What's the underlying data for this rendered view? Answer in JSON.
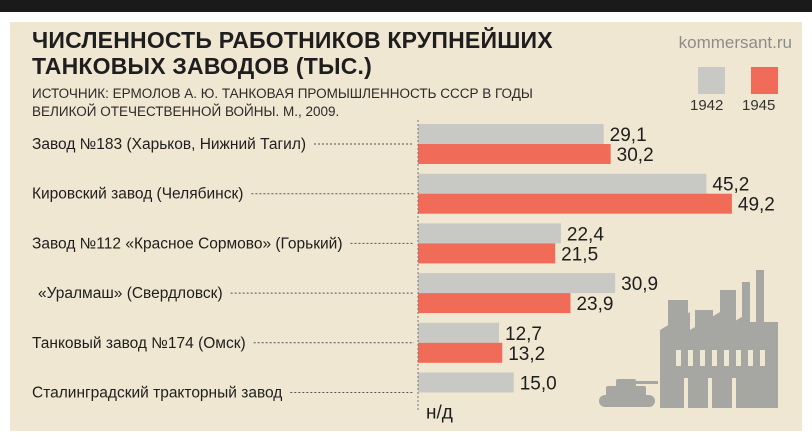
{
  "header": {
    "title": "ЧИСЛЕННОСТЬ РАБОТНИКОВ КРУПНЕЙШИХ ТАНКОВЫХ ЗАВОДОВ (ТЫС.)",
    "source_line1": "ИСТОЧНИК: ЕРМОЛОВ А. Ю. ТАНКОВАЯ ПРОМЫШЛЕННОСТЬ СССР В ГОДЫ",
    "source_line2": "ВЕЛИКОЙ ОТЕЧЕСТВЕННОЙ ВОЙНЫ. М., 2009.",
    "brand": "kommersant.ru"
  },
  "colors": {
    "series_1942": "#c8c8c5",
    "series_1945": "#f06c58",
    "panel": "#efe7d1",
    "icon": "#a6a7a3"
  },
  "legend": {
    "label_1942": "1942",
    "label_1945": "1945"
  },
  "chart_data": {
    "type": "bar",
    "orientation": "horizontal",
    "categories": [
      "Завод №183 (Харьков, Нижний Тагил)",
      "Кировский завод (Челябинск)",
      "Завод №112 «Красное Сормово» (Горький)",
      "«Уралмаш» (Свердловск)",
      "Танковый завод №174  (Омск)",
      "Сталинградский тракторный завод"
    ],
    "series": [
      {
        "name": "1942",
        "values": [
          29.1,
          45.2,
          22.4,
          30.9,
          12.7,
          15.0
        ],
        "labels": [
          "29,1",
          "45,2",
          "22,4",
          "30,9",
          "12,7",
          "15,0"
        ]
      },
      {
        "name": "1945",
        "values": [
          30.2,
          49.2,
          21.5,
          23.9,
          13.2,
          null
        ],
        "labels": [
          "30,2",
          "49,2",
          "21,5",
          "23,9",
          "13,2",
          "н/д"
        ]
      }
    ],
    "legend_position": "top-right",
    "grid": false
  }
}
